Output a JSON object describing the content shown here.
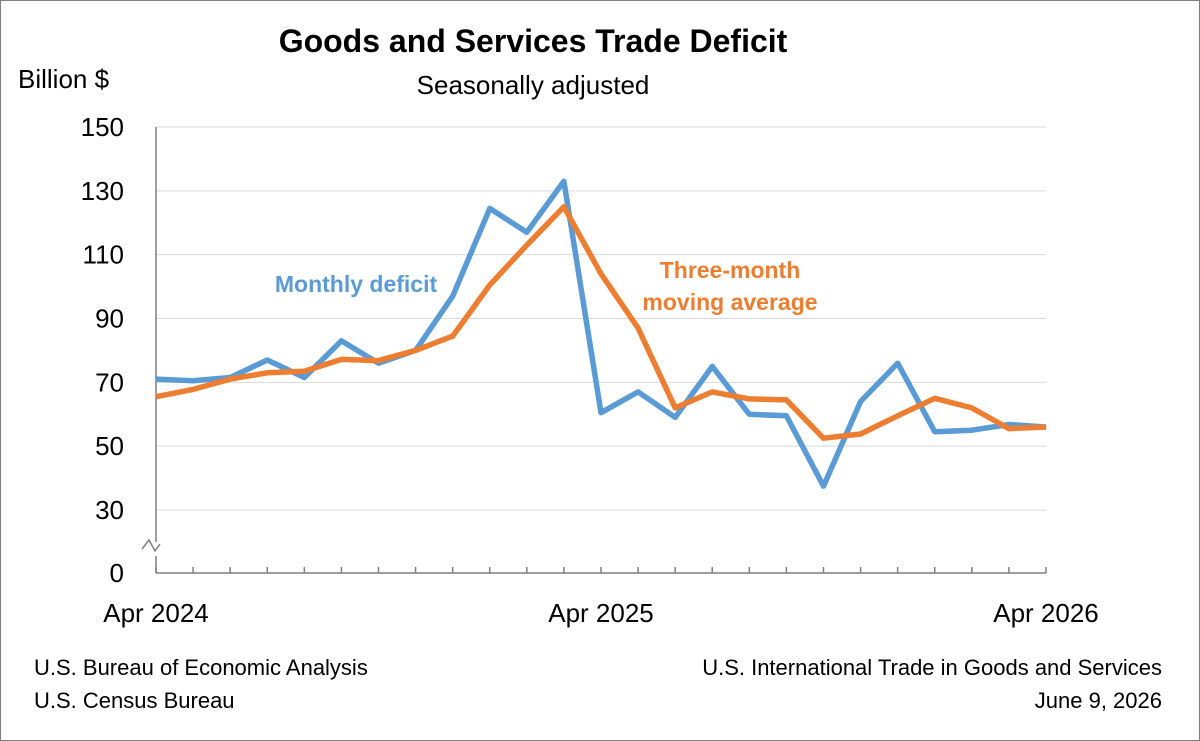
{
  "chart_data": {
    "type": "line",
    "title": "Goods and Services Trade Deficit",
    "subtitle": "Seasonally adjusted",
    "ylabel": "Billion $",
    "ylim": [
      0,
      150
    ],
    "y_axis_break": true,
    "y_ticks": [
      0,
      30,
      50,
      70,
      90,
      110,
      130,
      150
    ],
    "x": [
      "Apr 2024",
      "May 2024",
      "Jun 2024",
      "Jul 2024",
      "Aug 2024",
      "Sep 2024",
      "Oct 2024",
      "Nov 2024",
      "Dec 2024",
      "Jan 2025",
      "Feb 2025",
      "Mar 2025",
      "Apr 2025",
      "May 2025",
      "Jun 2025",
      "Jul 2025",
      "Aug 2025",
      "Sep 2025",
      "Oct 2025",
      "Nov 2025",
      "Dec 2025",
      "Jan 2026",
      "Feb 2026",
      "Mar 2026",
      "Apr 2026"
    ],
    "x_tick_labels": [
      {
        "index": 0,
        "label": "Apr 2024"
      },
      {
        "index": 12,
        "label": "Apr 2025"
      },
      {
        "index": 24,
        "label": "Apr 2026"
      }
    ],
    "grid": true,
    "series": [
      {
        "name": "Monthly deficit",
        "color": "#5b9bd5",
        "values": [
          71,
          70.5,
          71.5,
          77,
          71.5,
          83,
          76,
          80,
          97,
          124.5,
          117,
          133,
          60.5,
          67,
          59,
          75,
          60,
          59.5,
          37.5,
          64,
          76,
          54.5,
          55,
          56.8,
          56
        ]
      },
      {
        "name": "Three-month moving average",
        "color": "#ed7d31",
        "values": [
          65.5,
          67.8,
          71,
          73,
          73.5,
          77.2,
          76.8,
          80,
          84.5,
          100.5,
          113,
          125,
          104,
          87,
          62,
          67,
          64.8,
          64.5,
          52.5,
          53.8,
          59.5,
          65,
          62,
          55.5,
          56
        ]
      }
    ],
    "annotations": [
      {
        "text": "Monthly deficit",
        "color": "#5b9bd5"
      },
      {
        "text": "Three-month",
        "color": "#ed7d31"
      },
      {
        "text": "moving average",
        "color": "#ed7d31"
      }
    ]
  },
  "footer": {
    "source_line1": "U.S. Bureau of Economic Analysis",
    "source_line2": "U.S. Census Bureau",
    "release_line1": "U.S. International Trade in Goods and Services",
    "release_line2": "June 9, 2026"
  }
}
